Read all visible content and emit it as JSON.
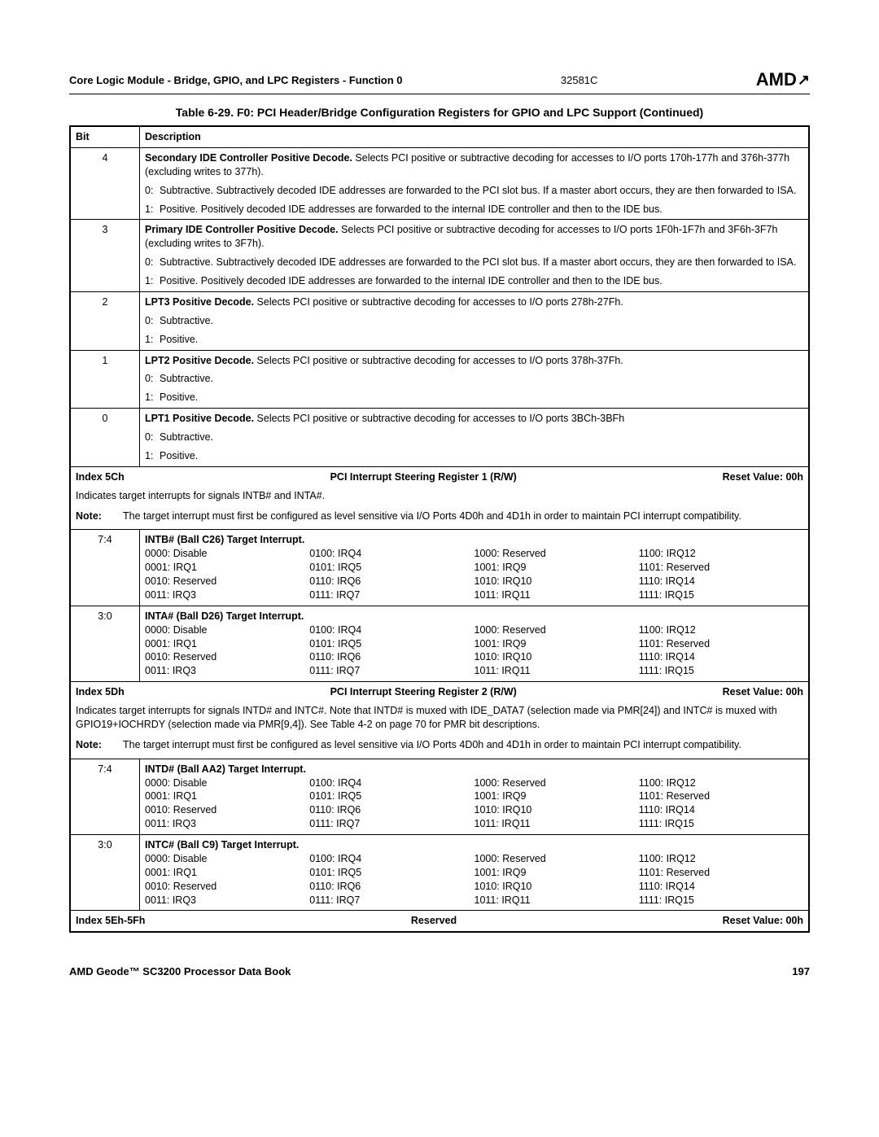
{
  "header": {
    "left": "Core Logic Module - Bridge, GPIO, and LPC Registers - Function 0",
    "docnum": "32581C",
    "logo_text": "AMD"
  },
  "table_title": "Table 6-29.  F0:  PCI Header/Bridge Configuration Registers for GPIO and LPC Support  (Continued)",
  "cols": {
    "bit": "Bit",
    "desc": "Description"
  },
  "rows_top": [
    {
      "bit": "4",
      "title_bold": "Secondary IDE Controller Positive Decode.",
      "title_rest": " Selects PCI positive or subtractive decoding for accesses to I/O ports 170h-177h and 376h-377h (excluding writes to 377h).",
      "opts": [
        {
          "n": "0:",
          "t": "Subtractive. Subtractively decoded IDE addresses are forwarded to the PCI slot bus. If a master abort occurs, they are then forwarded to ISA."
        },
        {
          "n": "1:",
          "t": "Positive. Positively decoded IDE addresses are forwarded to the internal IDE controller and then to the IDE bus."
        }
      ]
    },
    {
      "bit": "3",
      "title_bold": "Primary IDE Controller Positive Decode.",
      "title_rest": " Selects PCI positive or subtractive decoding for accesses to I/O ports 1F0h-1F7h and 3F6h-3F7h (excluding writes to 3F7h).",
      "opts": [
        {
          "n": "0:",
          "t": "Subtractive. Subtractively decoded IDE addresses are forwarded to the PCI slot bus. If a master abort occurs, they are then forwarded to ISA."
        },
        {
          "n": "1:",
          "t": "Positive. Positively decoded IDE addresses are forwarded to the internal IDE controller and then to the IDE bus."
        }
      ]
    },
    {
      "bit": "2",
      "title_bold": "LPT3 Positive Decode.",
      "title_rest": " Selects PCI positive or subtractive decoding for accesses to I/O ports 278h-27Fh.",
      "opts": [
        {
          "n": "0:",
          "t": "Subtractive."
        },
        {
          "n": "1:",
          "t": "Positive."
        }
      ]
    },
    {
      "bit": "1",
      "title_bold": "LPT2 Positive Decode.",
      "title_rest": " Selects PCI positive or subtractive decoding for accesses to I/O ports 378h-37Fh.",
      "opts": [
        {
          "n": "0:",
          "t": "Subtractive."
        },
        {
          "n": "1:",
          "t": "Positive."
        }
      ]
    },
    {
      "bit": "0",
      "title_bold": "LPT1 Positive Decode.",
      "title_rest": " Selects PCI positive or subtractive decoding for accesses to I/O ports 3BCh-3BFh",
      "opts": [
        {
          "n": "0:",
          "t": "Subtractive."
        },
        {
          "n": "1:",
          "t": "Positive."
        }
      ]
    }
  ],
  "index5C": {
    "label": "Index 5Ch",
    "center": "PCI Interrupt Steering Register 1 (R/W)",
    "reset": "Reset Value: 00h",
    "intro": "Indicates target interrupts for signals INTB# and INTA#.",
    "note_label": "Note:",
    "note_text": "The target interrupt must first be configured as level sensitive via I/O Ports 4D0h and 4D1h in order to maintain PCI interrupt compatibility."
  },
  "irq_quad": {
    "c1": [
      "0000: Disable",
      "0001: IRQ1",
      "0010: Reserved",
      "0011: IRQ3"
    ],
    "c2": [
      "0100: IRQ4",
      "0101: IRQ5",
      "0110: IRQ6",
      "0111: IRQ7"
    ],
    "c3": [
      "1000: Reserved",
      "1001: IRQ9",
      "1010: IRQ10",
      "1011: IRQ11"
    ],
    "c4": [
      "1100: IRQ12",
      "1101: Reserved",
      "1110: IRQ14",
      "1111: IRQ15"
    ]
  },
  "intb": {
    "bit": "7:4",
    "title": "INTB# (Ball C26) Target Interrupt."
  },
  "inta": {
    "bit": "3:0",
    "title": "INTA# (Ball D26) Target Interrupt."
  },
  "index5D": {
    "label": "Index 5Dh",
    "center": "PCI Interrupt Steering Register 2 (R/W)",
    "reset": "Reset Value: 00h",
    "intro": "Indicates target interrupts for signals INTD# and INTC#. Note that INTD# is muxed with IDE_DATA7 (selection made via PMR[24]) and INTC# is muxed with GPIO19+IOCHRDY (selection made via PMR[9,4]). See Table 4-2 on page 70 for PMR bit descriptions.",
    "note_label": "Note:",
    "note_text": "The target interrupt must first be configured as level sensitive via I/O Ports 4D0h and 4D1h in order to maintain PCI interrupt compatibility."
  },
  "intd": {
    "bit": "7:4",
    "title": "INTD# (Ball AA2) Target Interrupt."
  },
  "intc": {
    "bit": "3:0",
    "title": "INTC# (Ball C9) Target Interrupt."
  },
  "index5E": {
    "label": "Index 5Eh-5Fh",
    "center": "Reserved",
    "reset": "Reset Value: 00h"
  },
  "footer": {
    "title": "AMD Geode™ SC3200 Processor Data Book",
    "page": "197"
  }
}
